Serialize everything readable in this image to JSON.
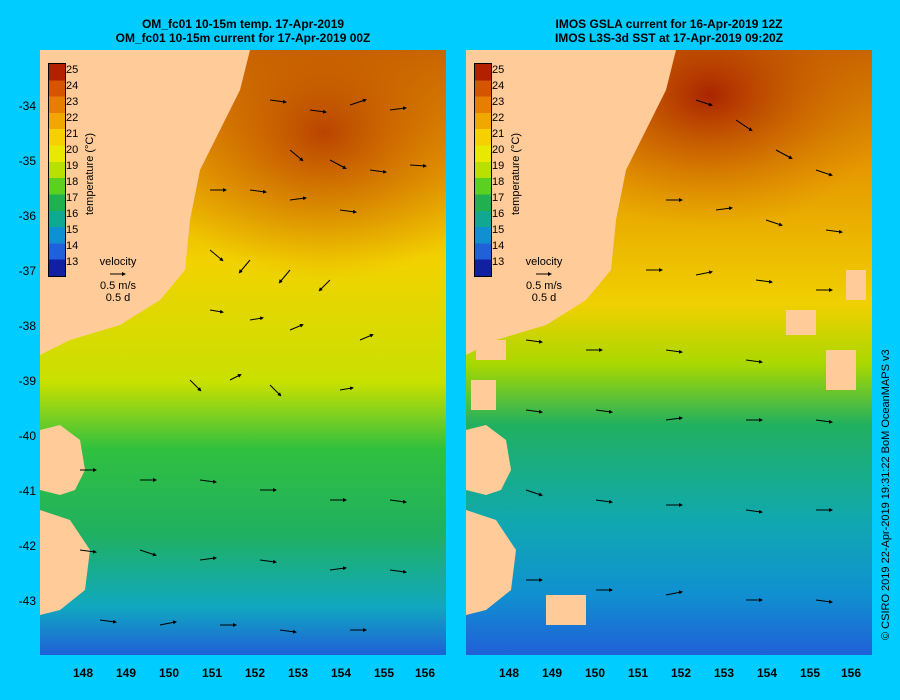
{
  "left": {
    "title_line1": "OM_fc01 10-15m temp. 17-Apr-2019",
    "title_line2": "OM_fc01 10-15m current for 17-Apr-2019 00Z"
  },
  "right": {
    "title_line1": "IMOS GSLA current for 16-Apr-2019 12Z",
    "title_line2": "IMOS L3S-3d SST at 17-Apr-2019 09:20Z"
  },
  "y_ticks": [
    "-34",
    "-35",
    "-36",
    "-37",
    "-38",
    "-39",
    "-40",
    "-41",
    "-42",
    "-43"
  ],
  "x_ticks": [
    "148",
    "149",
    "150",
    "151",
    "152",
    "153",
    "154",
    "155",
    "156"
  ],
  "colorbar": {
    "title": "temperature (°C)",
    "labels": [
      "25",
      "24",
      "23",
      "22",
      "21",
      "20",
      "19",
      "18",
      "17",
      "16",
      "15",
      "14",
      "13"
    ],
    "colors": [
      "#b22000",
      "#d45400",
      "#e67e00",
      "#f0a800",
      "#f7d000",
      "#e8e800",
      "#b8e000",
      "#5cd020",
      "#20b050",
      "#10a890",
      "#1090d0",
      "#2060d8",
      "#1020a0"
    ]
  },
  "velocity": {
    "label": "velocity",
    "speed": "0.5 m/s",
    "time": "0.5 d"
  },
  "credit": "© CSIRO 2019   22-Apr-2019 19:31:22 BoM OceanMAPS v3",
  "colors": {
    "background": "#00ccff",
    "land": "#ffcc99"
  }
}
